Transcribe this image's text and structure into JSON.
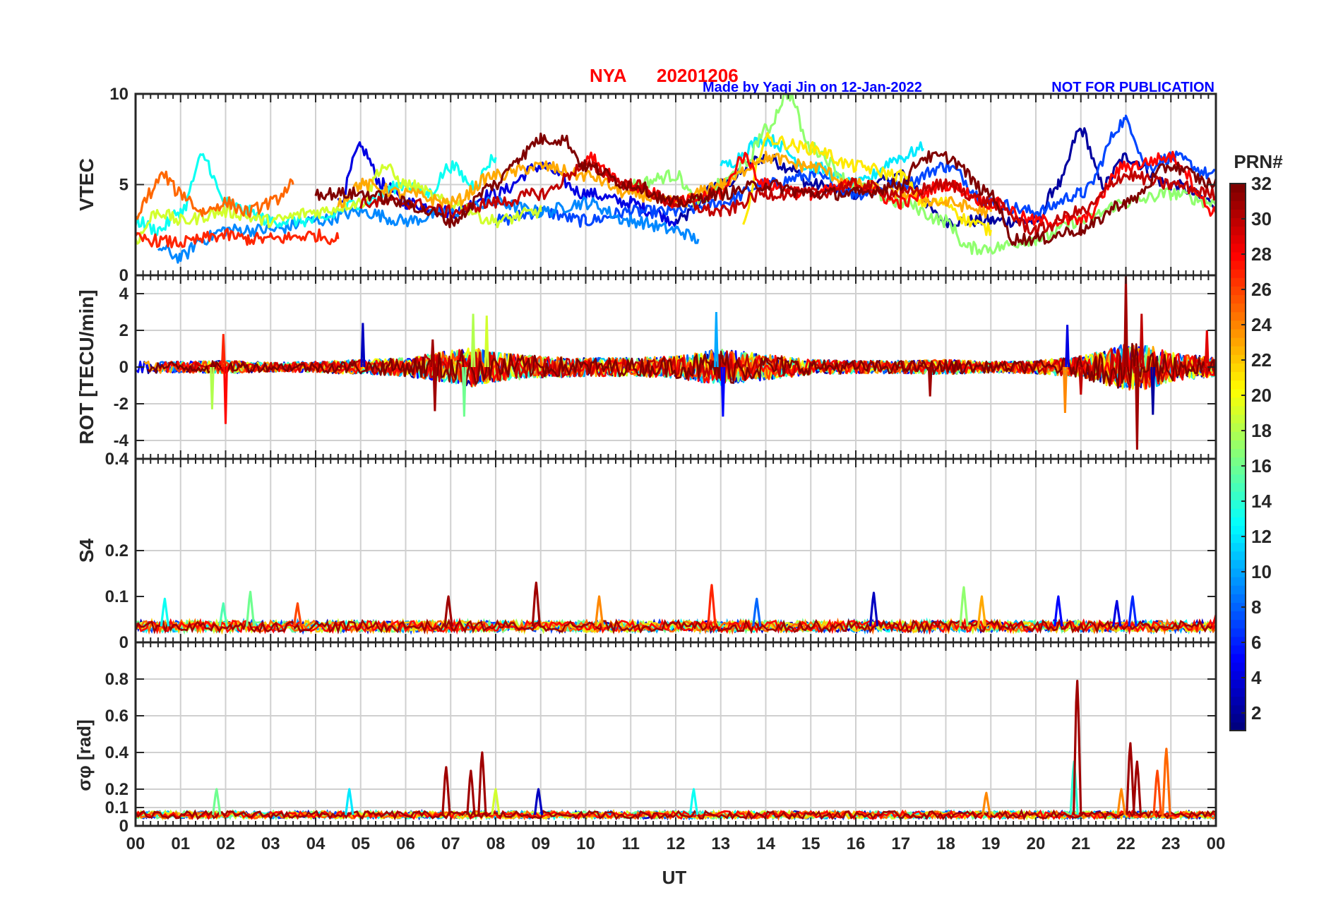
{
  "header": {
    "station": "NYA",
    "date": "20201206",
    "credit": "Made by Yaqi Jin on 12-Jan-2022",
    "notice": "NOT FOR PUBLICATION"
  },
  "colors": {
    "title": "#ff0000",
    "credit": "#0000ff",
    "grid": "#d0d0d0",
    "axis": "#262626"
  },
  "chart_data": {
    "type": "line",
    "colormap": "jet",
    "x_axis": {
      "label": "UT",
      "range_hours": [
        0,
        24
      ],
      "tick_labels": [
        "00",
        "01",
        "02",
        "03",
        "04",
        "05",
        "06",
        "07",
        "08",
        "09",
        "10",
        "11",
        "12",
        "13",
        "14",
        "15",
        "16",
        "17",
        "18",
        "19",
        "20",
        "21",
        "22",
        "23",
        "00"
      ]
    },
    "colorbar": {
      "label": "PRN#",
      "range": [
        1,
        32
      ],
      "tick_labels": [
        "2",
        "4",
        "6",
        "8",
        "10",
        "12",
        "14",
        "16",
        "18",
        "20",
        "22",
        "24",
        "26",
        "28",
        "30",
        "32"
      ],
      "tick_values": [
        2,
        4,
        6,
        8,
        10,
        12,
        14,
        16,
        18,
        20,
        22,
        24,
        26,
        28,
        30,
        32
      ]
    },
    "panels": [
      {
        "id": "vtec",
        "ylabel": "VTEC",
        "ylim": [
          0,
          10
        ],
        "tick_labels": [
          "0",
          "5",
          "10"
        ],
        "tick_values": [
          0,
          5,
          10
        ],
        "grid_values": [
          5
        ],
        "series": [
          {
            "prn": 2,
            "x": [
              12.0,
              13.0,
              14.0,
              14.5,
              15.0,
              16.0,
              17.0,
              18.0,
              19.0,
              20.0,
              20.5,
              21.0,
              21.5,
              22.0,
              23.0,
              24.0
            ],
            "y": [
              3.0,
              5.0,
              6.5,
              6.0,
              5.0,
              4.5,
              5.5,
              3.0,
              3.0,
              3.0,
              5.0,
              8.0,
              5.0,
              6.5,
              5.0,
              4.0
            ]
          },
          {
            "prn": 4,
            "x": [
              4.5,
              5.0,
              5.5,
              6.0,
              7.0,
              8.0,
              9.0,
              10.0,
              11.0,
              11.5,
              12.0
            ],
            "y": [
              4.0,
              7.0,
              5.0,
              4.0,
              3.5,
              4.5,
              6.0,
              4.5,
              4.0,
              3.5,
              3.0
            ]
          },
          {
            "prn": 7,
            "x": [
              8.0,
              9.0,
              10.0,
              11.0,
              12.0,
              13.0,
              14.0,
              15.0,
              16.0,
              17.0,
              18.0,
              19.0,
              20.0,
              21.0,
              22.0,
              22.5,
              23.0,
              24.0
            ],
            "y": [
              3.0,
              3.5,
              3.0,
              3.5,
              3.5,
              4.0,
              5.0,
              5.5,
              4.5,
              5.0,
              6.0,
              4.0,
              3.5,
              4.5,
              8.5,
              6.0,
              6.5,
              5.5
            ]
          },
          {
            "prn": 9,
            "x": [
              0.5,
              1.0,
              1.5,
              2.0,
              3.0,
              4.0,
              5.0,
              6.0,
              7.0,
              8.0,
              9.0,
              10.0,
              11.0,
              12.0,
              12.5
            ],
            "y": [
              1.5,
              1.0,
              2.0,
              2.5,
              2.5,
              3.0,
              3.5,
              3.0,
              3.5,
              4.0,
              3.5,
              4.0,
              3.0,
              2.5,
              2.0
            ]
          },
          {
            "prn": 12,
            "x": [
              13.0,
              14.0,
              15.0,
              16.0,
              17.0,
              17.5
            ],
            "y": [
              6.0,
              7.5,
              6.0,
              5.0,
              6.5,
              7.0
            ]
          },
          {
            "prn": 13,
            "x": [
              0.0,
              0.5,
              1.0,
              1.5,
              2.0,
              2.5,
              3.0,
              4.0,
              5.0,
              6.0,
              6.5,
              7.0,
              7.5,
              8.0
            ],
            "y": [
              3.0,
              2.5,
              3.5,
              6.5,
              4.0,
              3.5,
              3.0,
              3.0,
              4.0,
              5.0,
              4.5,
              6.0,
              5.0,
              6.5
            ]
          },
          {
            "prn": 17,
            "x": [
              11.0,
              12.0,
              12.5,
              13.0,
              13.5,
              14.0,
              14.5,
              15.0,
              16.0,
              17.0,
              18.0,
              18.5,
              19.0,
              20.0,
              21.0,
              22.0,
              23.0,
              24.0
            ],
            "y": [
              5.0,
              5.5,
              4.0,
              5.0,
              6.0,
              8.0,
              10.0,
              7.0,
              5.0,
              4.0,
              3.0,
              1.5,
              1.5,
              2.0,
              3.0,
              4.0,
              4.5,
              4.0
            ]
          },
          {
            "prn": 19,
            "x": [
              0.0,
              0.5,
              1.0,
              2.0,
              3.0,
              4.0,
              5.0,
              5.5,
              6.0,
              7.0,
              8.0,
              9.0
            ],
            "y": [
              2.0,
              3.5,
              3.0,
              3.5,
              3.0,
              3.5,
              4.0,
              6.0,
              5.0,
              4.0,
              3.0,
              3.5
            ]
          },
          {
            "prn": 21,
            "x": [
              13.5,
              14.0,
              15.0,
              16.0,
              17.0,
              17.5,
              18.0,
              18.5,
              19.0
            ],
            "y": [
              3.0,
              7.5,
              7.0,
              6.0,
              5.5,
              4.0,
              4.0,
              3.0,
              2.5
            ]
          },
          {
            "prn": 23,
            "x": [
              4.5,
              5.0,
              6.0,
              7.0,
              8.0,
              9.0,
              10.0,
              11.0,
              12.0,
              13.0,
              14.0,
              15.0,
              16.0,
              17.0,
              18.0,
              19.0
            ],
            "y": [
              4.0,
              5.0,
              4.5,
              4.0,
              5.5,
              6.0,
              5.5,
              4.5,
              4.0,
              5.0,
              6.5,
              6.0,
              5.0,
              4.5,
              4.0,
              3.5
            ]
          },
          {
            "prn": 25,
            "x": [
              0.0,
              0.3,
              0.6,
              1.0,
              1.5,
              2.0,
              2.5,
              3.0,
              3.5
            ],
            "y": [
              3.0,
              4.5,
              5.5,
              4.5,
              3.5,
              4.0,
              3.5,
              4.0,
              5.0
            ]
          },
          {
            "prn": 27,
            "x": [
              0.0,
              1.0,
              2.0,
              2.5,
              3.0,
              4.0,
              4.5
            ],
            "y": [
              2.0,
              1.8,
              2.2,
              2.0,
              2.0,
              2.2,
              2.0
            ]
          },
          {
            "prn": 28,
            "x": [
              10.0,
              11.0,
              12.0,
              13.0,
              13.5,
              14.0,
              15.0,
              16.0,
              17.0,
              18.0,
              19.0,
              20.0,
              21.0,
              22.0,
              23.0,
              24.0
            ],
            "y": [
              6.5,
              5.0,
              4.0,
              4.5,
              6.5,
              5.0,
              4.5,
              5.0,
              4.0,
              5.0,
              4.0,
              3.0,
              3.0,
              6.0,
              6.5,
              3.5
            ]
          },
          {
            "prn": 30,
            "x": [
              5.0,
              6.0,
              7.0,
              8.0,
              9.0,
              10.0,
              11.0,
              12.0,
              13.0,
              14.0,
              15.0,
              16.0,
              17.0,
              18.0,
              19.0,
              20.0,
              21.0,
              22.0,
              23.0,
              24.0
            ],
            "y": [
              4.0,
              4.0,
              3.5,
              4.0,
              4.5,
              6.0,
              5.0,
              4.0,
              3.5,
              4.5,
              4.5,
              5.0,
              4.5,
              5.0,
              4.0,
              2.5,
              3.5,
              5.5,
              5.0,
              4.5
            ]
          },
          {
            "prn": 32,
            "x": [
              4.0,
              5.0,
              6.0,
              6.5,
              7.0,
              8.0,
              8.5,
              9.0,
              9.5,
              10.0,
              11.0,
              12.0,
              13.0,
              14.0,
              15.0,
              16.0,
              17.0,
              17.5,
              18.0,
              19.0,
              19.5,
              20.0,
              21.0,
              22.0,
              23.0,
              24.0
            ],
            "y": [
              4.5,
              4.5,
              4.0,
              3.5,
              3.0,
              5.0,
              6.5,
              7.5,
              7.5,
              6.0,
              5.0,
              4.0,
              4.5,
              5.0,
              4.5,
              4.5,
              5.0,
              6.5,
              6.5,
              4.5,
              2.0,
              2.0,
              2.5,
              4.0,
              6.0,
              5.0
            ]
          }
        ]
      },
      {
        "id": "rot",
        "ylabel": "ROT [TECU/min]",
        "ylim": [
          -5,
          5
        ],
        "tick_labels": [
          "-4",
          "-2",
          "0",
          "2",
          "4"
        ],
        "tick_values": [
          -4,
          -2,
          0,
          2,
          4
        ],
        "grid_values": [
          -4,
          -2,
          0,
          2,
          4
        ],
        "base_activity": [
          {
            "x": 0.0,
            "amp": 0.35
          },
          {
            "x": 1.0,
            "amp": 0.3
          },
          {
            "x": 2.0,
            "amp": 0.35
          },
          {
            "x": 3.0,
            "amp": 0.25
          },
          {
            "x": 4.0,
            "amp": 0.3
          },
          {
            "x": 5.0,
            "amp": 0.4
          },
          {
            "x": 6.0,
            "amp": 0.5
          },
          {
            "x": 7.0,
            "amp": 0.9
          },
          {
            "x": 7.5,
            "amp": 1.1
          },
          {
            "x": 8.0,
            "amp": 0.8
          },
          {
            "x": 9.0,
            "amp": 0.6
          },
          {
            "x": 10.0,
            "amp": 0.5
          },
          {
            "x": 11.0,
            "amp": 0.5
          },
          {
            "x": 12.0,
            "amp": 0.6
          },
          {
            "x": 13.0,
            "amp": 1.0
          },
          {
            "x": 14.0,
            "amp": 0.7
          },
          {
            "x": 15.0,
            "amp": 0.4
          },
          {
            "x": 16.0,
            "amp": 0.35
          },
          {
            "x": 17.0,
            "amp": 0.35
          },
          {
            "x": 18.0,
            "amp": 0.4
          },
          {
            "x": 19.0,
            "amp": 0.3
          },
          {
            "x": 20.0,
            "amp": 0.35
          },
          {
            "x": 21.0,
            "amp": 0.6
          },
          {
            "x": 22.0,
            "amp": 1.3
          },
          {
            "x": 22.5,
            "amp": 1.2
          },
          {
            "x": 23.0,
            "amp": 0.8
          },
          {
            "x": 24.0,
            "amp": 0.5
          }
        ],
        "spikes": [
          {
            "x": 2.0,
            "y": -3.1,
            "prn": 28
          },
          {
            "x": 1.95,
            "y": 1.8,
            "prn": 27
          },
          {
            "x": 1.7,
            "y": -2.3,
            "prn": 18
          },
          {
            "x": 5.05,
            "y": 2.4,
            "prn": 3
          },
          {
            "x": 6.65,
            "y": -2.4,
            "prn": 31
          },
          {
            "x": 6.6,
            "y": 1.5,
            "prn": 31
          },
          {
            "x": 7.5,
            "y": 2.9,
            "prn": 18
          },
          {
            "x": 7.3,
            "y": -2.7,
            "prn": 16
          },
          {
            "x": 7.8,
            "y": 2.8,
            "prn": 19
          },
          {
            "x": 12.9,
            "y": 3.0,
            "prn": 10
          },
          {
            "x": 13.05,
            "y": -2.7,
            "prn": 5
          },
          {
            "x": 17.65,
            "y": -1.6,
            "prn": 31
          },
          {
            "x": 20.7,
            "y": 2.3,
            "prn": 4
          },
          {
            "x": 20.65,
            "y": -2.5,
            "prn": 24
          },
          {
            "x": 21.0,
            "y": -1.5,
            "prn": 30
          },
          {
            "x": 22.0,
            "y": 5.0,
            "prn": 31
          },
          {
            "x": 22.25,
            "y": -4.5,
            "prn": 31
          },
          {
            "x": 22.35,
            "y": 2.9,
            "prn": 30
          },
          {
            "x": 22.6,
            "y": -2.6,
            "prn": 2
          },
          {
            "x": 23.8,
            "y": 2.0,
            "prn": 29
          }
        ]
      },
      {
        "id": "s4",
        "ylabel": "S4",
        "ylim": [
          0,
          0.4
        ],
        "tick_labels": [
          "0",
          "0.1",
          "0.2",
          "0.4"
        ],
        "tick_values": [
          0,
          0.1,
          0.2,
          0.4
        ],
        "grid_values": [
          0.2
        ],
        "baseline": 0.035,
        "baseline_jitter": 0.012,
        "spikes": [
          {
            "x": 0.65,
            "y": 0.095,
            "prn": 13
          },
          {
            "x": 1.95,
            "y": 0.085,
            "prn": 15
          },
          {
            "x": 2.55,
            "y": 0.11,
            "prn": 16
          },
          {
            "x": 3.6,
            "y": 0.085,
            "prn": 26
          },
          {
            "x": 6.95,
            "y": 0.1,
            "prn": 31
          },
          {
            "x": 8.9,
            "y": 0.13,
            "prn": 31
          },
          {
            "x": 10.3,
            "y": 0.1,
            "prn": 24
          },
          {
            "x": 12.8,
            "y": 0.125,
            "prn": 27
          },
          {
            "x": 13.8,
            "y": 0.095,
            "prn": 8
          },
          {
            "x": 16.4,
            "y": 0.108,
            "prn": 3
          },
          {
            "x": 18.4,
            "y": 0.12,
            "prn": 17
          },
          {
            "x": 18.8,
            "y": 0.1,
            "prn": 23
          },
          {
            "x": 20.5,
            "y": 0.1,
            "prn": 5
          },
          {
            "x": 21.8,
            "y": 0.09,
            "prn": 4
          },
          {
            "x": 22.15,
            "y": 0.1,
            "prn": 6
          },
          {
            "x": 24.0,
            "y": 0.06,
            "prn": 28
          }
        ]
      },
      {
        "id": "sigphi",
        "ylabel": "σφ [rad]",
        "ylim": [
          0,
          1.0
        ],
        "tick_labels": [
          "0",
          "0.1",
          "0.2",
          "0.4",
          "0.6",
          "0.8"
        ],
        "tick_values": [
          0,
          0.1,
          0.2,
          0.4,
          0.6,
          0.8
        ],
        "grid_values": [
          0.1,
          0.2,
          0.4,
          0.6,
          0.8
        ],
        "baseline": 0.06,
        "baseline_jitter": 0.02,
        "spikes": [
          {
            "x": 1.8,
            "y": 0.2,
            "prn": 16
          },
          {
            "x": 4.75,
            "y": 0.2,
            "prn": 12
          },
          {
            "x": 6.9,
            "y": 0.32,
            "prn": 31
          },
          {
            "x": 7.45,
            "y": 0.3,
            "prn": 31
          },
          {
            "x": 7.7,
            "y": 0.4,
            "prn": 31
          },
          {
            "x": 8.0,
            "y": 0.2,
            "prn": 19
          },
          {
            "x": 8.95,
            "y": 0.2,
            "prn": 3
          },
          {
            "x": 12.4,
            "y": 0.2,
            "prn": 13
          },
          {
            "x": 18.9,
            "y": 0.18,
            "prn": 24
          },
          {
            "x": 20.85,
            "y": 0.35,
            "prn": 14
          },
          {
            "x": 20.92,
            "y": 0.79,
            "prn": 31
          },
          {
            "x": 22.1,
            "y": 0.45,
            "prn": 31
          },
          {
            "x": 22.25,
            "y": 0.35,
            "prn": 31
          },
          {
            "x": 22.7,
            "y": 0.3,
            "prn": 26
          },
          {
            "x": 22.9,
            "y": 0.42,
            "prn": 25
          },
          {
            "x": 21.9,
            "y": 0.2,
            "prn": 24
          }
        ]
      }
    ]
  }
}
